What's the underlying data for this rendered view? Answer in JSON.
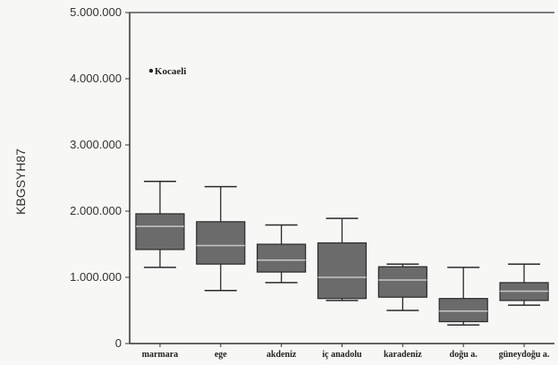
{
  "chart_data": {
    "type": "boxplot",
    "ylabel": "KBGSYH87",
    "ylim": [
      0,
      5000000
    ],
    "yticks": [
      0,
      1000000,
      2000000,
      3000000,
      4000000,
      5000000
    ],
    "ytick_labels": [
      "0",
      "1.000.000",
      "2.000.000",
      "3.000.000",
      "4.000.000",
      "5.000.000"
    ],
    "categories": [
      "marmara",
      "ege",
      "akdeniz",
      "iç anadolu",
      "karadeniz",
      "doğu a.",
      "güneydoğu a."
    ],
    "boxes": [
      {
        "category": "marmara",
        "whisker_low": 1150000,
        "q1": 1420000,
        "median": 1770000,
        "q3": 1960000,
        "whisker_high": 2450000
      },
      {
        "category": "ege",
        "whisker_low": 800000,
        "q1": 1200000,
        "median": 1480000,
        "q3": 1840000,
        "whisker_high": 2370000
      },
      {
        "category": "akdeniz",
        "whisker_low": 920000,
        "q1": 1080000,
        "median": 1260000,
        "q3": 1500000,
        "whisker_high": 1790000
      },
      {
        "category": "iç anadolu",
        "whisker_low": 650000,
        "q1": 680000,
        "median": 1000000,
        "q3": 1520000,
        "whisker_high": 1890000
      },
      {
        "category": "karadeniz",
        "whisker_low": 500000,
        "q1": 700000,
        "median": 960000,
        "q3": 1160000,
        "whisker_high": 1200000
      },
      {
        "category": "doğu a.",
        "whisker_low": 280000,
        "q1": 330000,
        "median": 490000,
        "q3": 680000,
        "whisker_high": 1150000
      },
      {
        "category": "güneydoğu a.",
        "whisker_low": 580000,
        "q1": 650000,
        "median": 790000,
        "q3": 920000,
        "whisker_high": 1200000
      }
    ],
    "outliers": [
      {
        "category": "marmara",
        "value": 4120000,
        "label": "Kocaeli"
      }
    ],
    "grid": false,
    "legend": "none",
    "colors": {
      "box_fill": "#6b6b6b",
      "box_stroke": "#2a2a2a",
      "median": "#c8c8c8",
      "axis": "#333333"
    }
  }
}
